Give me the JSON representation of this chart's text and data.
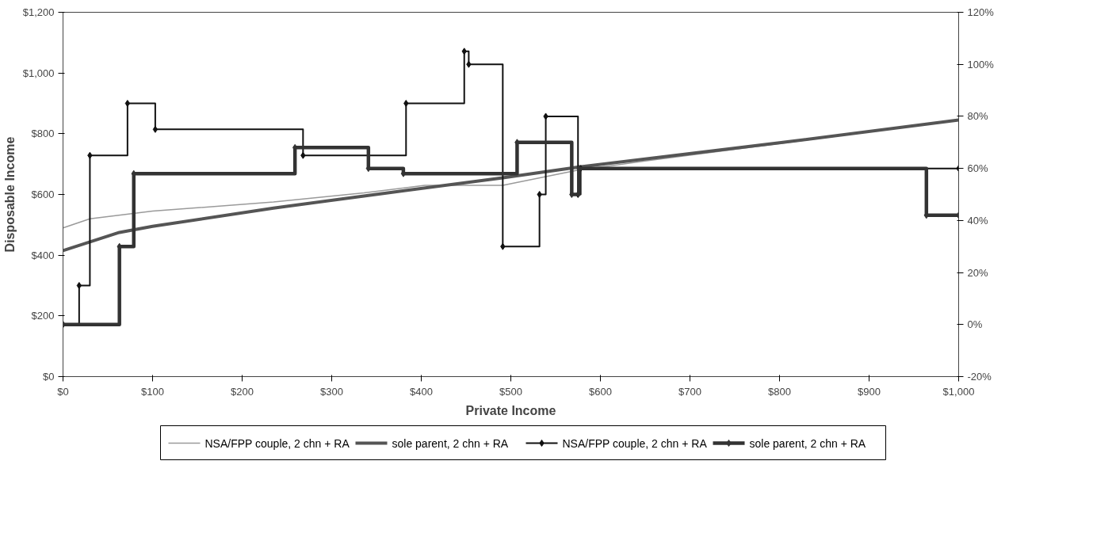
{
  "chart_data": {
    "type": "line",
    "xlabel": "Private Income",
    "ylabel": "Disposable Income",
    "xlim": [
      0,
      1000
    ],
    "xticks": [
      {
        "value": 0,
        "label": "$0"
      },
      {
        "value": 100,
        "label": "$100"
      },
      {
        "value": 200,
        "label": "$200"
      },
      {
        "value": 300,
        "label": "$300"
      },
      {
        "value": 400,
        "label": "$400"
      },
      {
        "value": 500,
        "label": "$500"
      },
      {
        "value": 600,
        "label": "$600"
      },
      {
        "value": 700,
        "label": "$700"
      },
      {
        "value": 800,
        "label": "$800"
      },
      {
        "value": 900,
        "label": "$900"
      },
      {
        "value": 1000,
        "label": "$1,000"
      }
    ],
    "ylim": [
      0,
      1200
    ],
    "yticks": [
      {
        "value": 0,
        "label": "$0"
      },
      {
        "value": 200,
        "label": "$200"
      },
      {
        "value": 400,
        "label": "$400"
      },
      {
        "value": 600,
        "label": "$600"
      },
      {
        "value": 800,
        "label": "$800"
      },
      {
        "value": 1000,
        "label": "$1,000"
      },
      {
        "value": 1200,
        "label": "$1,200"
      }
    ],
    "y2lim": [
      -20,
      120
    ],
    "y2ticks": [
      {
        "value": -20,
        "label": "-20%"
      },
      {
        "value": 0,
        "label": "0%"
      },
      {
        "value": 20,
        "label": "20%"
      },
      {
        "value": 40,
        "label": "40%"
      },
      {
        "value": 60,
        "label": "60%"
      },
      {
        "value": 80,
        "label": "80%"
      },
      {
        "value": 100,
        "label": "100%"
      },
      {
        "value": 120,
        "label": "120%"
      }
    ],
    "grid": false,
    "legend": "bottom",
    "series": [
      {
        "name": "NSA/FPP couple, 2 chn + RA",
        "color": "#9a9a9a",
        "marker": "none",
        "x": [
          0,
          30,
          100,
          235,
          336,
          404,
          491,
          575,
          650,
          1000
        ],
        "values": [
          490,
          520,
          545,
          575,
          605,
          630,
          630,
          680,
          710,
          845
        ]
      },
      {
        "name": "sole parent, 2 chn + RA",
        "color": "#555555",
        "marker": "none",
        "x": [
          0,
          63,
          100,
          235,
          336,
          491,
          575,
          800,
          1000
        ],
        "values": [
          415,
          475,
          495,
          555,
          595,
          655,
          690,
          770,
          845
        ]
      },
      {
        "name": "NSA/FPP couple, 2 chn + RA",
        "type": "step",
        "axis": "y2",
        "color": "#111111",
        "marker": "diamond",
        "x": [
          0,
          18,
          30,
          72,
          103,
          268,
          383,
          448,
          453,
          491,
          532,
          539,
          575,
          578,
          1000
        ],
        "values": [
          0,
          15,
          65,
          85,
          75,
          65,
          85,
          105,
          100,
          30,
          50,
          80,
          50,
          60,
          60
        ]
      },
      {
        "name": "sole parent, 2 chn + RA",
        "type": "step",
        "axis": "y2",
        "color": "#333333",
        "marker": "diamond",
        "x": [
          0,
          63,
          79,
          259,
          341,
          380,
          507,
          568,
          576,
          964,
          1000
        ],
        "values": [
          0,
          30,
          58,
          68,
          60,
          58,
          70,
          50,
          60,
          42,
          42
        ]
      }
    ]
  }
}
